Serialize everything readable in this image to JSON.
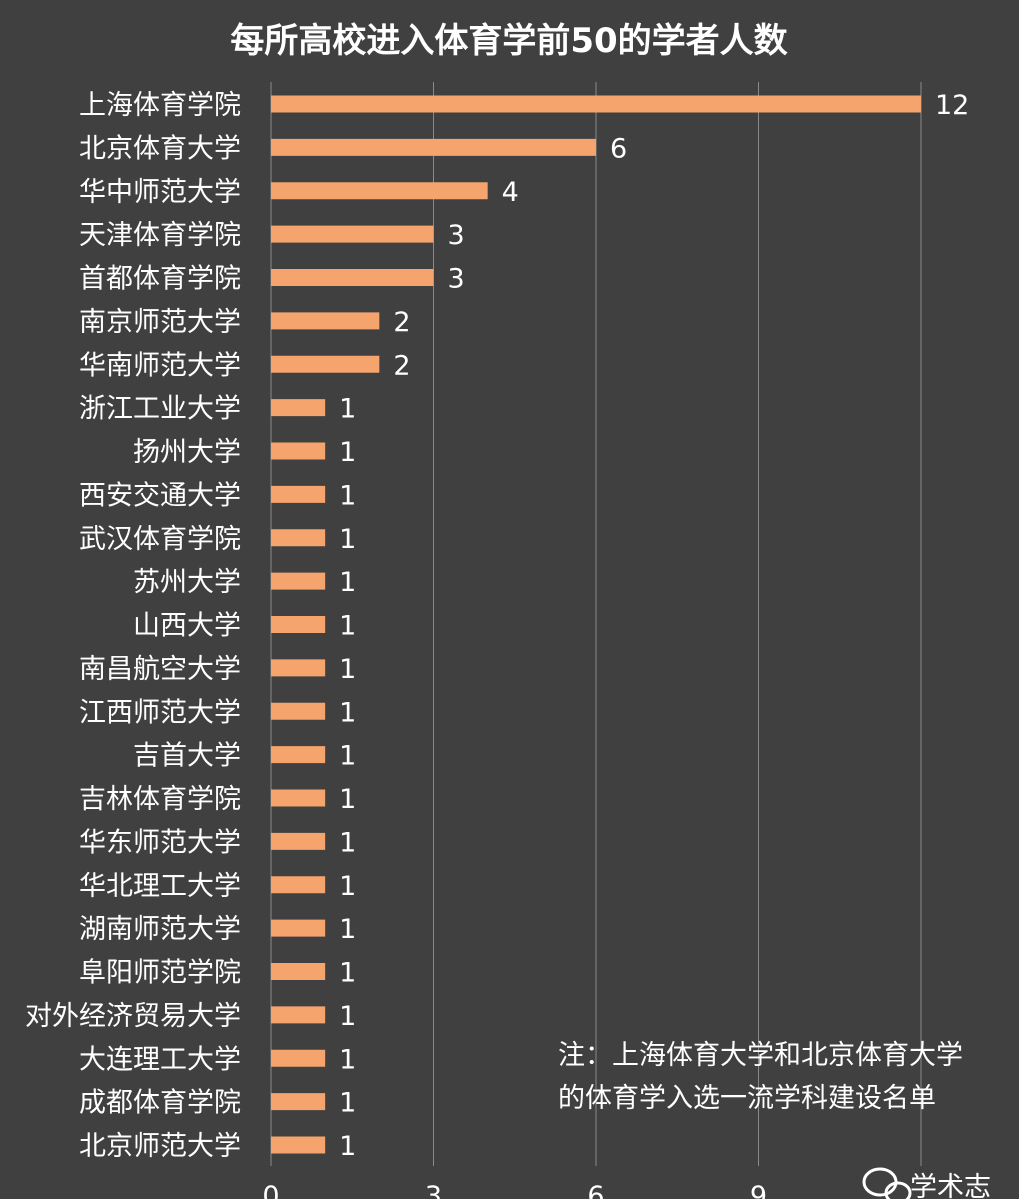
{
  "chart_data": {
    "type": "bar",
    "orientation": "horizontal",
    "title": "每所高校进入体育学前50的学者人数",
    "xlabel": "",
    "ylabel": "",
    "categories": [
      "上海体育学院",
      "北京体育大学",
      "华中师范大学",
      "天津体育学院",
      "首都体育学院",
      "南京师范大学",
      "华南师范大学",
      "浙江工业大学",
      "扬州大学",
      "西安交通大学",
      "武汉体育学院",
      "苏州大学",
      "山西大学",
      "南昌航空大学",
      "江西师范大学",
      "吉首大学",
      "吉林体育学院",
      "华东师范大学",
      "华北理工大学",
      "湖南师范大学",
      "阜阳师范学院",
      "对外经济贸易大学",
      "大连理工大学",
      "成都体育学院",
      "北京师范大学"
    ],
    "values": [
      12,
      6,
      4,
      3,
      3,
      2,
      2,
      1,
      1,
      1,
      1,
      1,
      1,
      1,
      1,
      1,
      1,
      1,
      1,
      1,
      1,
      1,
      1,
      1,
      1
    ],
    "xlim": [
      0,
      12
    ],
    "xticks": [
      "0",
      "3",
      "6",
      "9"
    ],
    "grid": true,
    "bar_color": "#F4A46C",
    "annotation": [
      "注：上海体育大学和北京体育大学",
      "的体育学入选一流学科建设名单"
    ],
    "watermark": "学术志",
    "watermark_icon": "wechat-icon"
  }
}
